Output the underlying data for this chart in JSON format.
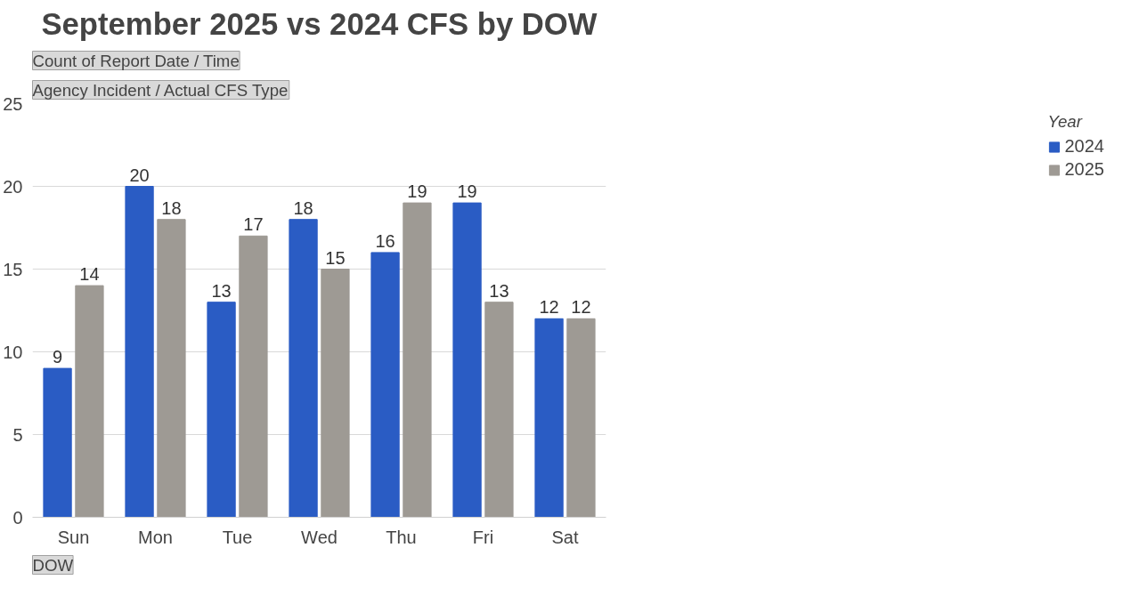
{
  "chart_data": {
    "type": "bar",
    "title": "September 2025 vs 2024 CFS by DOW",
    "xlabel": "DOW",
    "legend_title": "Year",
    "annotations": [
      "Agency Incident / Actual CFS Type",
      "Count of Report Date / Time"
    ],
    "categories": [
      "Sun",
      "Mon",
      "Tue",
      "Wed",
      "Thu",
      "Fri",
      "Sat"
    ],
    "series": [
      {
        "name": "2024",
        "color": "#2a5cc4",
        "values": [
          9,
          20,
          13,
          18,
          16,
          19,
          12
        ]
      },
      {
        "name": "2025",
        "color": "#9e9a94",
        "values": [
          14,
          18,
          17,
          15,
          19,
          13,
          12
        ]
      }
    ],
    "ylim": [
      0,
      25
    ],
    "yticks": [
      0,
      5,
      10,
      15,
      20,
      25
    ],
    "grid": "y",
    "legend": "right",
    "data_labels": true
  }
}
